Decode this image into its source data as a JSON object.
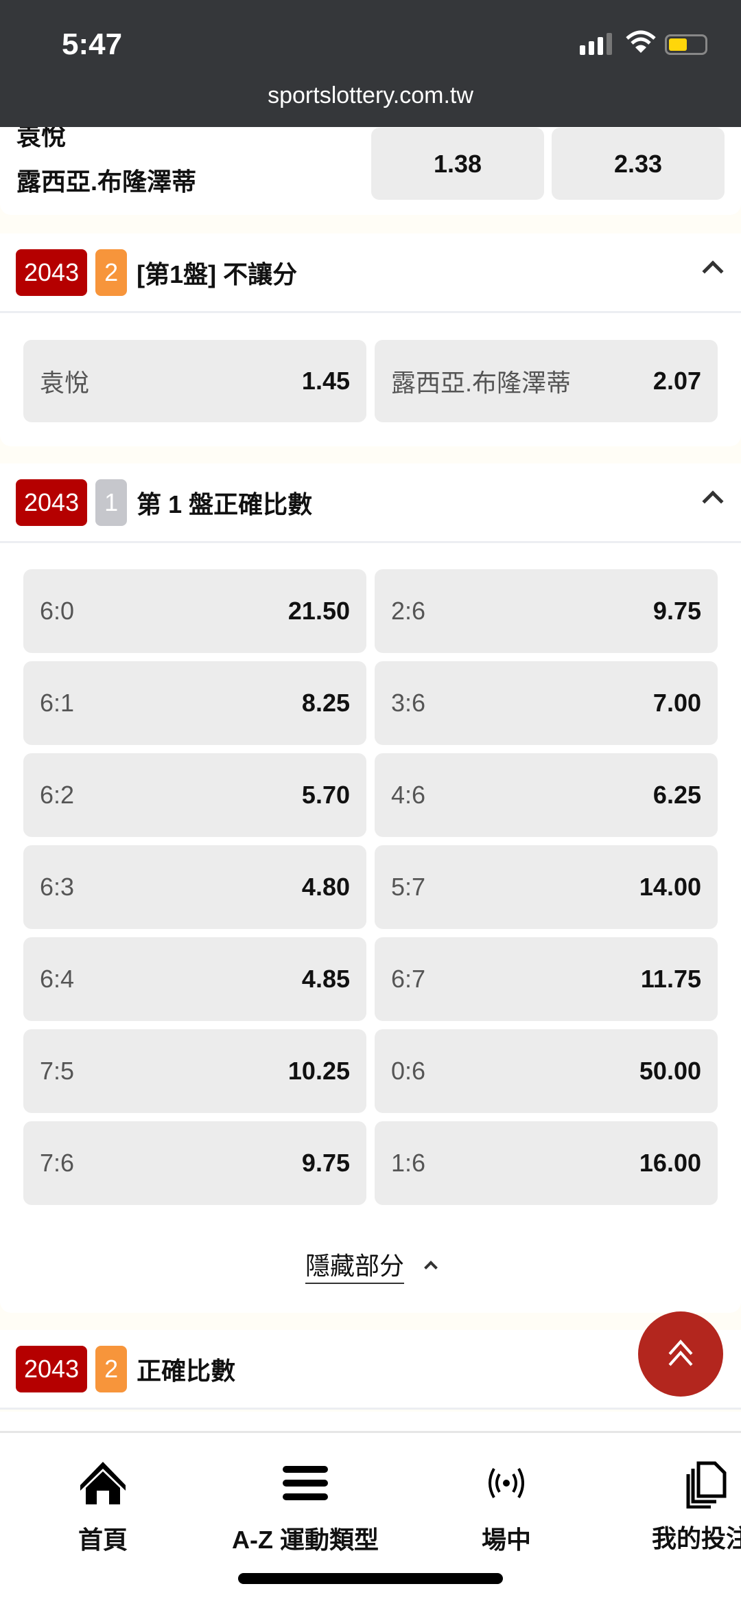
{
  "status": {
    "time": "5:47",
    "battery_color": "#ffd60a"
  },
  "browser": {
    "url": "sportslottery.com.tw"
  },
  "top_match": {
    "home": "袁悅",
    "away": "露西亞.布隆澤蒂",
    "odds": [
      "1.38",
      "2.33"
    ]
  },
  "sections": [
    {
      "code": "2043",
      "count": "2",
      "count_color": "#f7953b",
      "title": "[第1盤] 不讓分",
      "options": [
        {
          "label": "袁悅",
          "odd": "1.45"
        },
        {
          "label": "露西亞.布隆澤蒂",
          "odd": "2.07"
        }
      ]
    },
    {
      "code": "2043",
      "count": "1",
      "count_color": "#c6c7cc",
      "title": "第 1 盤正確比數",
      "options": [
        {
          "label": "6:0",
          "odd": "21.50"
        },
        {
          "label": "2:6",
          "odd": "9.75"
        },
        {
          "label": "6:1",
          "odd": "8.25"
        },
        {
          "label": "3:6",
          "odd": "7.00"
        },
        {
          "label": "6:2",
          "odd": "5.70"
        },
        {
          "label": "4:6",
          "odd": "6.25"
        },
        {
          "label": "6:3",
          "odd": "4.80"
        },
        {
          "label": "5:7",
          "odd": "14.00"
        },
        {
          "label": "6:4",
          "odd": "4.85"
        },
        {
          "label": "6:7",
          "odd": "11.75"
        },
        {
          "label": "7:5",
          "odd": "10.25"
        },
        {
          "label": "0:6",
          "odd": "50.00"
        },
        {
          "label": "7:6",
          "odd": "9.75"
        },
        {
          "label": "1:6",
          "odd": "16.00"
        }
      ],
      "toggle": "隱藏部分"
    },
    {
      "code": "2043",
      "count": "2",
      "count_color": "#f7953b",
      "title": "正確比數"
    }
  ],
  "nav": [
    {
      "label": "首頁",
      "icon": "home-icon"
    },
    {
      "label": "A-Z 運動類型",
      "icon": "menu-icon"
    },
    {
      "label": "場中",
      "icon": "live-icon"
    },
    {
      "label": "我的投注",
      "icon": "bets-icon"
    }
  ],
  "accent": "#b50000"
}
